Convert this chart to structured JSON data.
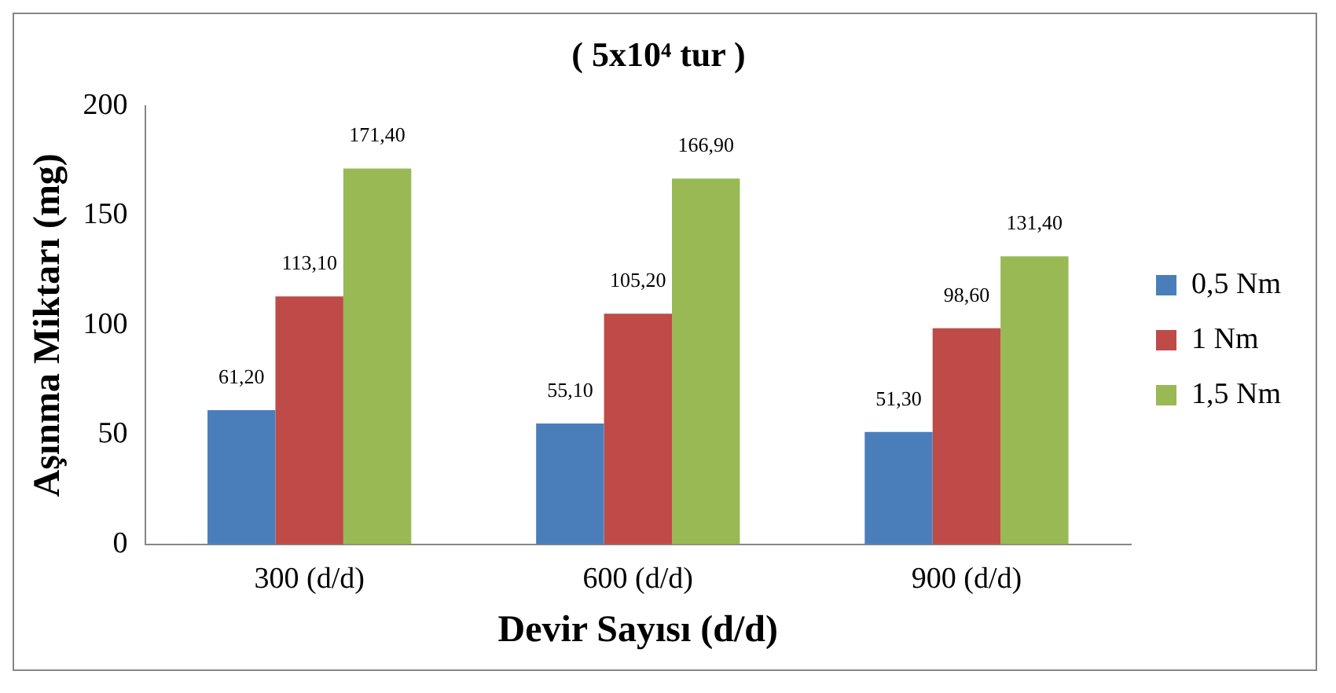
{
  "chart_data": {
    "type": "bar",
    "title": "( 5x10⁴ tur )",
    "xlabel": "Devir Sayısı (d/d)",
    "ylabel": "Aşınma Miktarı (mg)",
    "categories": [
      "300 (d/d)",
      "600 (d/d)",
      "900 (d/d)"
    ],
    "series": [
      {
        "name": "0,5 Nm",
        "color": "#4a7ebb",
        "values": [
          61.2,
          55.1,
          51.3
        ],
        "value_labels": [
          "61,20",
          "55,10",
          "51,30"
        ]
      },
      {
        "name": "1 Nm",
        "color": "#be4b48",
        "values": [
          113.1,
          105.2,
          98.6
        ],
        "value_labels": [
          "113,10",
          "105,20",
          "98,60"
        ]
      },
      {
        "name": "1,5 Nm",
        "color": "#98b954",
        "values": [
          171.4,
          166.9,
          131.4
        ],
        "value_labels": [
          "171,40",
          "166,90",
          "131,40"
        ]
      }
    ],
    "ylim": [
      0,
      200
    ],
    "yticks": [
      0,
      50,
      100,
      150,
      200
    ],
    "grid": false,
    "legend": "right"
  }
}
